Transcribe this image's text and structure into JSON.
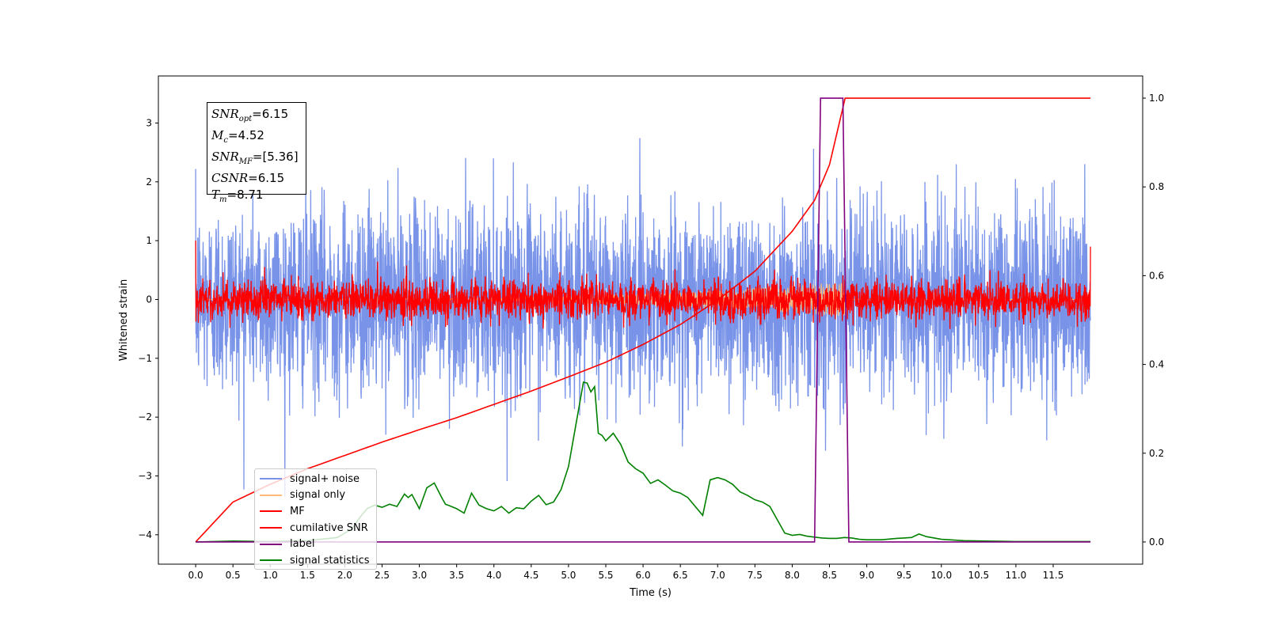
{
  "chart_data": {
    "type": "line",
    "xlabel": "Time (s)",
    "ylabel": "Whitened strain",
    "xlim": [
      -0.5,
      12.7
    ],
    "ylim": [
      -4.5,
      3.8
    ],
    "y2lim": [
      -0.05,
      1.05
    ],
    "xticks": [
      "0.0",
      "0.5",
      "1.0",
      "1.5",
      "2.0",
      "2.5",
      "3.0",
      "3.5",
      "4.0",
      "4.5",
      "5.0",
      "5.5",
      "6.0",
      "6.5",
      "7.0",
      "7.5",
      "8.0",
      "8.5",
      "9.0",
      "9.5",
      "10.0",
      "10.5",
      "11.0",
      "11.5"
    ],
    "yticks": [
      "3",
      "2",
      "1",
      "0",
      "−1",
      "−2",
      "−3",
      "−4"
    ],
    "y2ticks": [
      "1.0",
      "0.8",
      "0.6",
      "0.4",
      "0.2",
      "0.0"
    ],
    "annotation": {
      "snr_opt": "=6.15",
      "mc": "=4.52",
      "snr_mf": "=[5.36]",
      "csnr": "=6.15",
      "tm": "=8.71"
    },
    "legend": [
      "signal+ noise",
      "signal only",
      "MF",
      "cumilative SNR",
      "label",
      "signal statistics"
    ],
    "legend_position": "lower-left",
    "colors": {
      "signal_noise": "#7893e8",
      "signal_only": "#ffbb77",
      "mf": "#ff0000",
      "cumulative_snr": "#ff0000",
      "label": "#800080",
      "signal_statistics": "#008000"
    },
    "series": [
      {
        "name": "signal+ noise",
        "axis": "left",
        "description": "whitened noisy strain, roughly Gaussian with std ~0.8",
        "x_range": [
          0,
          12.0
        ],
        "sigma": 0.8,
        "y_min": -4.15,
        "y_max": 3.3
      },
      {
        "name": "signal only",
        "axis": "left",
        "x_range": [
          0,
          12.0
        ],
        "amplitude_max": 0.3
      },
      {
        "name": "MF",
        "axis": "left",
        "x_range": [
          0,
          12.0
        ],
        "sigma": 0.17,
        "y_start": 1.0,
        "y_end": 0.9
      },
      {
        "name": "cumilative SNR",
        "axis": "right",
        "x": [
          0.0,
          0.5,
          1.0,
          1.5,
          2.0,
          2.5,
          3.0,
          3.5,
          4.0,
          4.5,
          5.0,
          5.5,
          6.0,
          6.5,
          7.0,
          7.5,
          8.0,
          8.3,
          8.5,
          8.71,
          12.0
        ],
        "y": [
          0.0,
          0.09,
          0.13,
          0.165,
          0.195,
          0.225,
          0.253,
          0.28,
          0.31,
          0.34,
          0.372,
          0.405,
          0.445,
          0.49,
          0.545,
          0.61,
          0.7,
          0.77,
          0.85,
          1.0,
          1.0
        ]
      },
      {
        "name": "label",
        "axis": "right",
        "x": [
          0.0,
          8.3,
          8.38,
          8.68,
          8.76,
          12.0
        ],
        "y": [
          0.0,
          0.0,
          1.0,
          1.0,
          0.0,
          0.0
        ]
      },
      {
        "name": "signal statistics",
        "axis": "right",
        "x": [
          0.0,
          0.5,
          1.0,
          1.5,
          1.9,
          2.1,
          2.2,
          2.3,
          2.4,
          2.5,
          2.6,
          2.7,
          2.8,
          2.85,
          2.9,
          3.0,
          3.1,
          3.2,
          3.3,
          3.35,
          3.4,
          3.5,
          3.6,
          3.7,
          3.8,
          3.9,
          4.0,
          4.1,
          4.2,
          4.3,
          4.4,
          4.5,
          4.6,
          4.7,
          4.8,
          4.9,
          5.0,
          5.1,
          5.2,
          5.25,
          5.3,
          5.35,
          5.4,
          5.45,
          5.5,
          5.6,
          5.7,
          5.8,
          5.9,
          6.0,
          6.1,
          6.2,
          6.3,
          6.4,
          6.5,
          6.6,
          6.7,
          6.8,
          6.9,
          7.0,
          7.1,
          7.2,
          7.3,
          7.4,
          7.5,
          7.6,
          7.7,
          7.8,
          7.9,
          8.0,
          8.1,
          8.2,
          8.3,
          8.4,
          8.5,
          8.6,
          8.7,
          8.8,
          8.9,
          9.0,
          9.2,
          9.4,
          9.6,
          9.7,
          9.8,
          10.0,
          10.3,
          10.6,
          11.0,
          12.0
        ],
        "y": [
          0.0,
          0.002,
          0.001,
          0.003,
          0.01,
          0.03,
          0.055,
          0.075,
          0.083,
          0.078,
          0.085,
          0.08,
          0.108,
          0.1,
          0.107,
          0.075,
          0.122,
          0.133,
          0.1,
          0.085,
          0.082,
          0.075,
          0.065,
          0.11,
          0.083,
          0.075,
          0.07,
          0.08,
          0.065,
          0.077,
          0.075,
          0.092,
          0.105,
          0.084,
          0.09,
          0.118,
          0.17,
          0.265,
          0.36,
          0.358,
          0.338,
          0.35,
          0.245,
          0.24,
          0.228,
          0.245,
          0.22,
          0.18,
          0.165,
          0.155,
          0.132,
          0.14,
          0.128,
          0.115,
          0.11,
          0.1,
          0.08,
          0.06,
          0.14,
          0.145,
          0.14,
          0.13,
          0.113,
          0.105,
          0.095,
          0.09,
          0.08,
          0.05,
          0.02,
          0.015,
          0.017,
          0.013,
          0.011,
          0.009,
          0.008,
          0.008,
          0.01,
          0.009,
          0.006,
          0.005,
          0.005,
          0.008,
          0.01,
          0.018,
          0.012,
          0.006,
          0.003,
          0.002,
          0.001,
          0.001
        ]
      }
    ]
  }
}
